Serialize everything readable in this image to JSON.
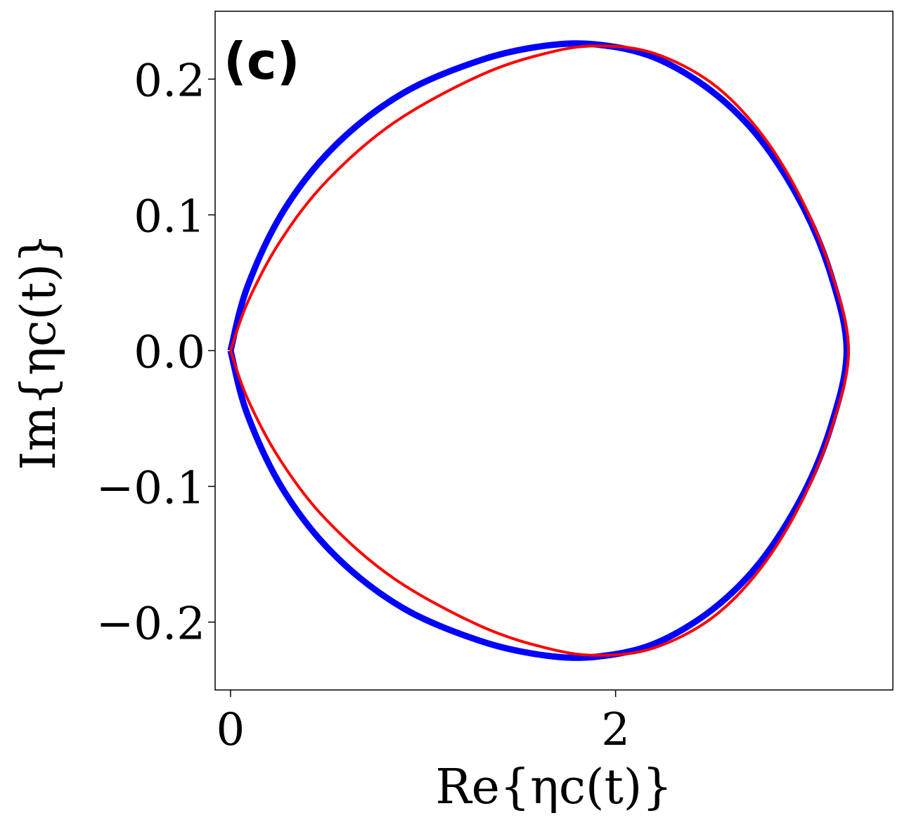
{
  "chart_data": {
    "type": "line",
    "panel_label": "(c)",
    "xlabel": "Re{ηc(t)}",
    "ylabel": "Im{ηc(t)}",
    "xlim": [
      -0.08,
      3.44
    ],
    "ylim": [
      -0.25,
      0.25
    ],
    "x_ticks": [
      0,
      2
    ],
    "x_tick_labels": [
      "0",
      "2"
    ],
    "y_ticks": [
      0.2,
      0.1,
      0.0,
      -0.1,
      -0.2
    ],
    "y_tick_labels": [
      "0.2",
      "0.1",
      "0.0",
      "−0.1",
      "−0.2"
    ],
    "grid": false,
    "legend": "none",
    "series": [
      {
        "color": "#0000ff",
        "stroke": "thick",
        "points": [
          [
            0.0,
            0.0
          ],
          [
            0.09,
            0.048
          ],
          [
            0.28,
            0.104
          ],
          [
            0.55,
            0.152
          ],
          [
            0.9,
            0.19
          ],
          [
            1.3,
            0.214
          ],
          [
            1.63,
            0.2245
          ],
          [
            1.9,
            0.2255
          ],
          [
            2.2,
            0.216
          ],
          [
            2.5,
            0.191
          ],
          [
            2.75,
            0.156
          ],
          [
            2.97,
            0.107
          ],
          [
            3.12,
            0.055
          ],
          [
            3.2,
            0.0
          ],
          [
            3.12,
            -0.055
          ],
          [
            2.97,
            -0.107
          ],
          [
            2.75,
            -0.156
          ],
          [
            2.5,
            -0.191
          ],
          [
            2.2,
            -0.216
          ],
          [
            1.9,
            -0.2255
          ],
          [
            1.63,
            -0.2245
          ],
          [
            1.3,
            -0.214
          ],
          [
            0.9,
            -0.19
          ],
          [
            0.55,
            -0.152
          ],
          [
            0.28,
            -0.104
          ],
          [
            0.09,
            -0.048
          ],
          [
            0.0,
            0.0
          ]
        ]
      },
      {
        "color": "#ff0000",
        "stroke": "thin",
        "points": [
          [
            0.0,
            0.0
          ],
          [
            0.09,
            0.036
          ],
          [
            0.26,
            0.081
          ],
          [
            0.5,
            0.125
          ],
          [
            0.85,
            0.168
          ],
          [
            1.3,
            0.203
          ],
          [
            1.66,
            0.2198
          ],
          [
            1.92,
            0.2245
          ],
          [
            2.2,
            0.219
          ],
          [
            2.5,
            0.197
          ],
          [
            2.75,
            0.161
          ],
          [
            2.96,
            0.113
          ],
          [
            3.12,
            0.058
          ],
          [
            3.21,
            0.0
          ],
          [
            3.12,
            -0.058
          ],
          [
            2.96,
            -0.113
          ],
          [
            2.75,
            -0.161
          ],
          [
            2.5,
            -0.197
          ],
          [
            2.2,
            -0.219
          ],
          [
            1.92,
            -0.2245
          ],
          [
            1.66,
            -0.2198
          ],
          [
            1.3,
            -0.203
          ],
          [
            0.85,
            -0.168
          ],
          [
            0.5,
            -0.125
          ],
          [
            0.26,
            -0.081
          ],
          [
            0.09,
            -0.036
          ],
          [
            0.0,
            0.0
          ]
        ]
      }
    ]
  }
}
